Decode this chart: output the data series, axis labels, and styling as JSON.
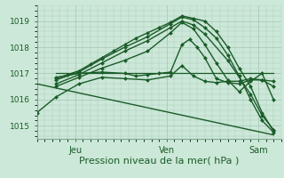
{
  "background_color": "#cce8d8",
  "grid_color": "#aacaba",
  "line_color": "#1a5c28",
  "marker_color": "#1a5c28",
  "xlabel": "Pression niveau de la mer( hPa )",
  "xlabel_fontsize": 8,
  "ylabel_ticks": [
    1015,
    1016,
    1017,
    1018,
    1019
  ],
  "ylim": [
    1014.5,
    1019.6
  ],
  "xlim": [
    0,
    64
  ],
  "xtick_positions": [
    10,
    34,
    58
  ],
  "xtick_labels": [
    "Jeu",
    "Ven",
    "Sam"
  ],
  "series": [
    {
      "x": [
        5,
        8,
        11,
        14,
        17,
        20,
        23,
        26,
        29,
        32,
        35,
        38,
        41,
        44,
        47,
        50,
        53,
        56,
        59,
        62
      ],
      "y": [
        1016.8,
        1016.95,
        1017.1,
        1017.35,
        1017.6,
        1017.85,
        1018.1,
        1018.35,
        1018.55,
        1018.75,
        1018.95,
        1019.2,
        1019.1,
        1019.0,
        1018.6,
        1018.0,
        1017.2,
        1016.5,
        1015.5,
        1014.8
      ],
      "linewidth": 1.0,
      "has_markers": true,
      "alpha": 1.0
    },
    {
      "x": [
        5,
        11,
        17,
        23,
        29,
        35,
        38,
        41,
        44,
        47,
        50,
        53,
        56,
        59,
        62
      ],
      "y": [
        1016.75,
        1017.05,
        1017.55,
        1018.0,
        1018.4,
        1018.9,
        1019.15,
        1019.05,
        1018.75,
        1018.35,
        1017.7,
        1016.9,
        1016.0,
        1015.2,
        1014.75
      ],
      "linewidth": 1.0,
      "has_markers": true,
      "alpha": 1.0
    },
    {
      "x": [
        5,
        11,
        17,
        23,
        29,
        35,
        38,
        41,
        44,
        50,
        56,
        59,
        62
      ],
      "y": [
        1016.6,
        1016.95,
        1017.4,
        1017.85,
        1018.25,
        1018.75,
        1019.0,
        1018.85,
        1018.5,
        1017.5,
        1016.2,
        1015.4,
        1014.85
      ],
      "linewidth": 1.0,
      "has_markers": true,
      "alpha": 1.0
    },
    {
      "x": [
        5,
        11,
        17,
        23,
        29,
        35,
        38,
        41,
        44,
        47,
        50,
        53,
        56,
        59,
        62
      ],
      "y": [
        1016.5,
        1016.85,
        1017.2,
        1017.5,
        1017.85,
        1018.55,
        1018.95,
        1018.7,
        1018.1,
        1017.4,
        1016.75,
        1016.3,
        1016.7,
        1017.0,
        1016.0
      ],
      "linewidth": 1.0,
      "has_markers": true,
      "alpha": 1.0
    },
    {
      "x": [
        5,
        11,
        17,
        23,
        26,
        29,
        32,
        35,
        38,
        40,
        42,
        44,
        47,
        50,
        53,
        56,
        59,
        62
      ],
      "y": [
        1016.85,
        1017.0,
        1017.05,
        1017.0,
        1016.9,
        1016.95,
        1017.0,
        1017.05,
        1018.1,
        1018.3,
        1018.0,
        1017.6,
        1016.8,
        1016.65,
        1016.6,
        1016.75,
        1016.75,
        1016.7
      ],
      "linewidth": 1.0,
      "has_markers": true,
      "alpha": 1.0
    },
    {
      "x": [
        5,
        62
      ],
      "y": [
        1017.0,
        1017.0
      ],
      "linewidth": 0.9,
      "has_markers": false,
      "alpha": 1.0
    },
    {
      "x": [
        0,
        62
      ],
      "y": [
        1016.6,
        1014.65
      ],
      "linewidth": 1.0,
      "has_markers": false,
      "alpha": 1.0
    },
    {
      "x": [
        0,
        5,
        11,
        17,
        23,
        29,
        35,
        38,
        41,
        44,
        47,
        50,
        53,
        56,
        59,
        62
      ],
      "y": [
        1015.5,
        1016.1,
        1016.6,
        1016.85,
        1016.8,
        1016.75,
        1016.9,
        1017.3,
        1016.9,
        1016.7,
        1016.65,
        1016.7,
        1016.7,
        1016.8,
        1016.75,
        1016.5
      ],
      "linewidth": 1.0,
      "has_markers": true,
      "alpha": 1.0
    }
  ]
}
